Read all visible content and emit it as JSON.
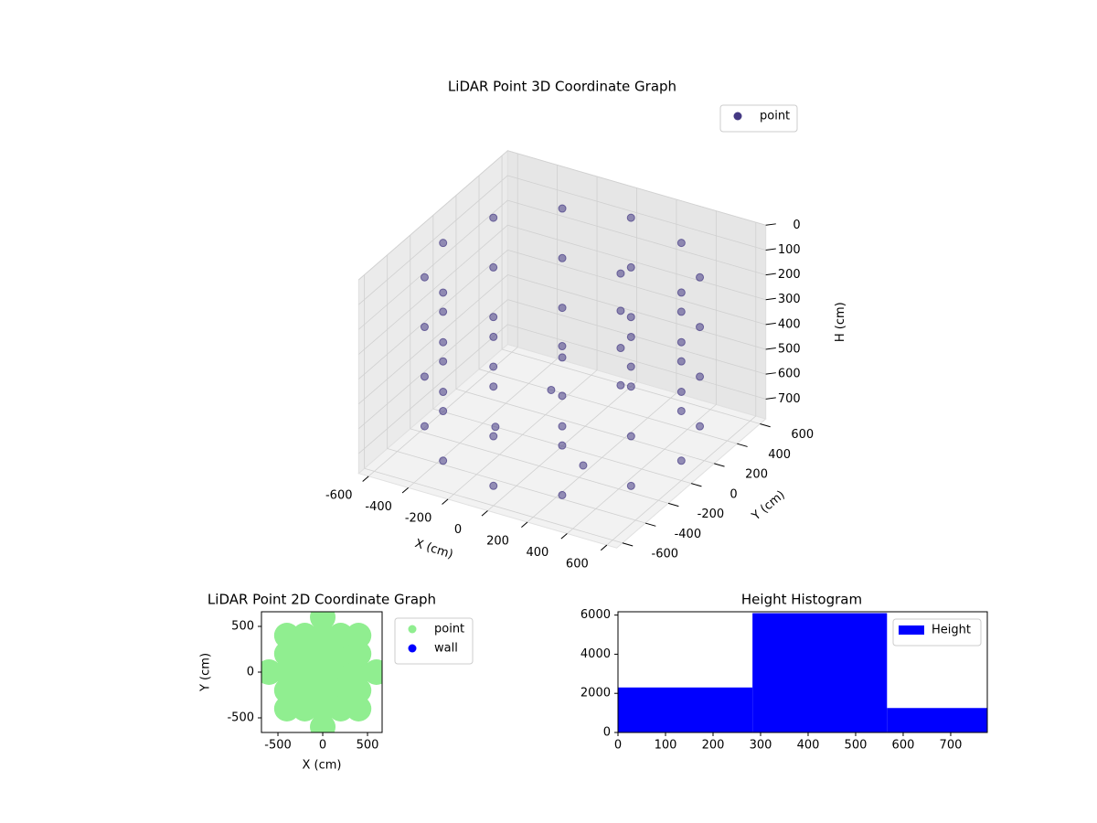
{
  "chart_data": [
    {
      "type": "scatter3d",
      "title": "LiDAR Point 3D Coordinate Graph",
      "x_label": "X (cm)",
      "y_label": "Y (cm)",
      "z_label": "H (cm)",
      "xlim": [
        -650,
        650
      ],
      "ylim": [
        -650,
        650
      ],
      "zlim": [
        0,
        780
      ],
      "z_inverted": true,
      "xticks": [
        -600,
        -400,
        -200,
        0,
        200,
        400,
        600
      ],
      "yticks": [
        -600,
        -400,
        -200,
        0,
        200,
        400,
        600
      ],
      "zticks": [
        0,
        100,
        200,
        300,
        400,
        500,
        600,
        700
      ],
      "grid": true,
      "legend_loc": "upper right",
      "series": [
        {
          "name": "point",
          "color": "#443983",
          "x": [
            600,
            600,
            600,
            600,
            520,
            520,
            520,
            520,
            300,
            300,
            300,
            300,
            0,
            0,
            0,
            0,
            -300,
            -300,
            -300,
            -300,
            -520,
            -520,
            -520,
            -520,
            -600,
            -600,
            -600,
            -600,
            -520,
            -520,
            -520,
            -520,
            -300,
            -300,
            -300,
            -300,
            0,
            0,
            0,
            0,
            300,
            300,
            300,
            300,
            520,
            520,
            520,
            520,
            150,
            150,
            150,
            150,
            0,
            -250,
            250,
            -200
          ],
          "y": [
            0,
            0,
            0,
            0,
            300,
            300,
            300,
            300,
            520,
            520,
            520,
            520,
            600,
            600,
            600,
            600,
            520,
            520,
            520,
            520,
            300,
            300,
            300,
            300,
            0,
            0,
            0,
            0,
            -300,
            -300,
            -300,
            -300,
            -520,
            -520,
            -520,
            -520,
            -600,
            -600,
            -600,
            -600,
            -520,
            -520,
            -520,
            -520,
            -300,
            -300,
            -300,
            -300,
            250,
            250,
            250,
            250,
            0,
            -150,
            -250,
            250
          ],
          "z": [
            100,
            300,
            500,
            700,
            100,
            300,
            500,
            700,
            100,
            300,
            500,
            700,
            100,
            300,
            500,
            700,
            100,
            300,
            500,
            700,
            100,
            300,
            500,
            700,
            100,
            300,
            500,
            700,
            100,
            300,
            500,
            700,
            100,
            300,
            500,
            700,
            100,
            300,
            500,
            700,
            100,
            300,
            500,
            700,
            100,
            300,
            500,
            700,
            150,
            300,
            450,
            600,
            700,
            700,
            700,
            700
          ]
        }
      ]
    },
    {
      "type": "scatter",
      "title": "LiDAR Point 2D Coordinate Graph",
      "x_label": "X (cm)",
      "y_label": "Y (cm)",
      "xlim": [
        -684,
        663
      ],
      "ylim": [
        -660,
        660
      ],
      "xticks": [
        -500,
        0,
        500
      ],
      "yticks": [
        -500,
        0,
        500
      ],
      "legend_loc": "outside right",
      "series": [
        {
          "name": "point",
          "color": "#90ee90",
          "x": [
            -600,
            -400,
            -200,
            0,
            200,
            400,
            600,
            -400,
            -200,
            0,
            200,
            400,
            -400,
            -200,
            0,
            200,
            400,
            -400,
            -200,
            0,
            200,
            400,
            -400,
            -200,
            0,
            200,
            400,
            0,
            0
          ],
          "y": [
            0,
            0,
            0,
            0,
            0,
            0,
            0,
            200,
            200,
            200,
            200,
            200,
            -200,
            -200,
            -200,
            -200,
            -200,
            400,
            400,
            400,
            400,
            400,
            -400,
            -400,
            -400,
            -400,
            -400,
            600,
            -600
          ]
        },
        {
          "name": "wall",
          "color": "#0000ff",
          "x": [],
          "y": []
        }
      ]
    },
    {
      "type": "histogram",
      "title": "Height Histogram",
      "bins": [
        0,
        283,
        566,
        849
      ],
      "series": [
        {
          "name": "Height",
          "color": "#0000ff",
          "values": [
            2300,
            6100,
            1250
          ]
        }
      ],
      "xlim": [
        0,
        777
      ],
      "ylim": [
        0,
        6170
      ],
      "xticks": [
        0,
        100,
        200,
        300,
        400,
        500,
        600,
        700
      ],
      "yticks": [
        0,
        2000,
        4000,
        6000
      ],
      "legend_loc": "upper right"
    }
  ]
}
